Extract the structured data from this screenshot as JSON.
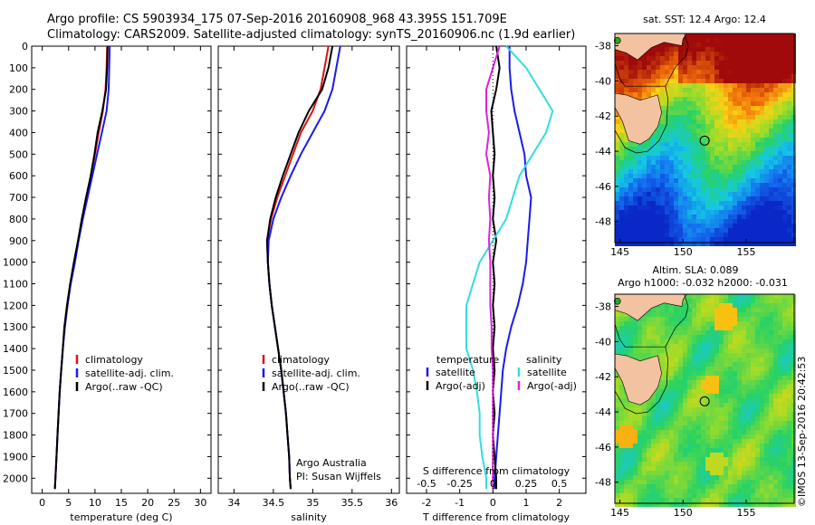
{
  "header": {
    "line1": "Argo profile: CS 5903934_175 07-Sep-2016 20160908_968 43.395S 151.709E",
    "line2": "Climatology: CARS2009. Satellite-adjusted climatology: synTS_20160906.nc (1.9d earlier)"
  },
  "colors": {
    "climatology": "#dd1111",
    "satellite": "#1a1aee",
    "argo": "#000000",
    "sal_satellite": "#33dddd",
    "sal_argo": "#dd22dd"
  },
  "chart_data": [
    {
      "type": "line",
      "id": "temperature",
      "xlabel": "temperature (deg C)",
      "ylabel": "",
      "xlim": [
        -2,
        32
      ],
      "ylim": [
        2070,
        0
      ],
      "xticks": [
        0,
        5,
        10,
        15,
        20,
        25,
        30
      ],
      "yticks": [
        0,
        100,
        200,
        300,
        400,
        500,
        600,
        700,
        800,
        900,
        1000,
        1100,
        1200,
        1300,
        1400,
        1500,
        1600,
        1700,
        1800,
        1900,
        2000
      ],
      "legend": [
        "climatology",
        "satellite-adj. clim.",
        "Argo(..raw -QC)"
      ],
      "series": [
        {
          "name": "climatology",
          "depth": [
            0,
            100,
            200,
            300,
            400,
            500,
            600,
            700,
            800,
            900,
            1000,
            1100,
            1200,
            1300,
            1400,
            1500,
            1600,
            1700,
            1800,
            1900,
            2000,
            2050
          ],
          "values": [
            12.3,
            12.2,
            12.0,
            11.5,
            10.7,
            10.0,
            9.2,
            8.4,
            7.6,
            6.8,
            6.1,
            5.3,
            4.7,
            4.2,
            3.9,
            3.6,
            3.3,
            3.1,
            2.9,
            2.7,
            2.5,
            2.4
          ]
        },
        {
          "name": "satellite-adj. clim.",
          "depth": [
            0,
            100,
            200,
            300,
            400,
            500,
            600,
            700,
            800,
            900,
            1000,
            1100,
            1200,
            1300,
            1400,
            1500,
            1600,
            1700,
            1800,
            1900,
            2000,
            2050
          ],
          "values": [
            12.8,
            12.7,
            12.6,
            12.2,
            11.3,
            10.4,
            9.5,
            8.6,
            7.7,
            6.9,
            6.2,
            5.4,
            4.8,
            4.3,
            3.9,
            3.6,
            3.3,
            3.1,
            2.9,
            2.7,
            2.5,
            2.4
          ]
        },
        {
          "name": "Argo(..raw -QC)",
          "depth": [
            0,
            100,
            200,
            300,
            400,
            500,
            600,
            700,
            800,
            900,
            1000,
            1100,
            1200,
            1300,
            1400,
            1500,
            1600,
            1700,
            1800,
            1900,
            2000,
            2050
          ],
          "values": [
            12.4,
            12.3,
            12.1,
            11.4,
            10.5,
            9.9,
            9.2,
            8.3,
            7.5,
            6.8,
            6.0,
            5.3,
            4.7,
            4.2,
            3.9,
            3.6,
            3.3,
            3.1,
            2.9,
            2.7,
            2.5,
            2.4
          ]
        }
      ]
    },
    {
      "type": "line",
      "id": "salinity",
      "xlabel": "salinity",
      "ylabel": "",
      "xlim": [
        33.8,
        36.1
      ],
      "ylim": [
        2070,
        0
      ],
      "xticks": [
        34,
        34.5,
        35,
        35.5,
        36
      ],
      "legend": [
        "climatology",
        "satellite-adj. clim.",
        "Argo(..raw -QC)"
      ],
      "annotation": [
        "Argo Australia",
        "PI: Susan Wijffels"
      ],
      "series": [
        {
          "name": "climatology",
          "depth": [
            0,
            100,
            200,
            300,
            400,
            500,
            600,
            700,
            800,
            900,
            1000,
            1100,
            1200,
            1300,
            1400,
            1500,
            1600,
            1700,
            1800,
            1900,
            2000,
            2050
          ],
          "values": [
            35.2,
            35.15,
            35.1,
            35.0,
            34.85,
            34.75,
            34.65,
            34.55,
            34.47,
            34.42,
            34.43,
            34.45,
            34.48,
            34.52,
            34.56,
            34.6,
            34.63,
            34.66,
            34.68,
            34.7,
            34.71,
            34.72
          ]
        },
        {
          "name": "satellite-adj. clim.",
          "depth": [
            0,
            100,
            200,
            300,
            400,
            500,
            600,
            700,
            800,
            900,
            1000,
            1100,
            1200,
            1300,
            1400,
            1500,
            1600,
            1700,
            1800,
            1900,
            2000,
            2050
          ],
          "values": [
            35.35,
            35.3,
            35.25,
            35.15,
            35.0,
            34.85,
            34.72,
            34.6,
            34.5,
            34.44,
            34.43,
            34.45,
            34.48,
            34.52,
            34.56,
            34.6,
            34.63,
            34.66,
            34.68,
            34.7,
            34.71,
            34.72
          ]
        },
        {
          "name": "Argo(..raw -QC)",
          "depth": [
            0,
            100,
            200,
            300,
            400,
            500,
            600,
            700,
            800,
            900,
            1000,
            1100,
            1200,
            1300,
            1400,
            1500,
            1600,
            1700,
            1800,
            1900,
            2000,
            2050
          ],
          "values": [
            35.25,
            35.2,
            35.12,
            34.95,
            34.82,
            34.72,
            34.62,
            34.53,
            34.46,
            34.42,
            34.43,
            34.45,
            34.48,
            34.52,
            34.56,
            34.6,
            34.63,
            34.66,
            34.68,
            34.7,
            34.71,
            34.72
          ]
        }
      ]
    },
    {
      "type": "line",
      "id": "differences",
      "xlabel": "T difference from climatology",
      "ylabel": "",
      "xlim": [
        -2.6,
        2.8
      ],
      "ylim": [
        2070,
        0
      ],
      "xticks": [
        -2,
        -1,
        0,
        1,
        2
      ],
      "secondary_axis_label": "S difference from climatology",
      "secondary_ticks": [
        "-0.5",
        "-0.25",
        "0",
        "0.25",
        "0.5"
      ],
      "legend_temperature": "temperature",
      "legend_salinity": "salinity",
      "legend": [
        "satellite",
        "Argo(-adj)",
        "satellite",
        "Argo(-adj)"
      ],
      "series": [
        {
          "name": "T satellite",
          "depth": [
            0,
            100,
            200,
            300,
            400,
            500,
            600,
            700,
            800,
            900,
            1000,
            1100,
            1200,
            1300,
            1400,
            1500,
            1600,
            1700,
            1800,
            1900,
            2000,
            2050
          ],
          "values": [
            0.5,
            0.5,
            0.55,
            0.65,
            0.8,
            0.95,
            1.0,
            1.15,
            1.1,
            1.05,
            1.0,
            0.9,
            0.75,
            0.55,
            0.4,
            0.3,
            0.25,
            0.2,
            0.15,
            0.1,
            0.05,
            0.05
          ]
        },
        {
          "name": "T Argo(-adj)",
          "depth": [
            0,
            100,
            200,
            300,
            400,
            500,
            600,
            700,
            800,
            900,
            1000,
            1100,
            1200,
            1300,
            1400,
            1500,
            1600,
            1700,
            1800,
            1900,
            2000,
            2050
          ],
          "values": [
            0.1,
            0.2,
            0.1,
            -0.05,
            0.0,
            0.05,
            0.0,
            0.05,
            0.0,
            0.1,
            0.0,
            0.05,
            0.0,
            0.05,
            0.0,
            0.05,
            0.0,
            0.05,
            0.0,
            0.05,
            0.1,
            0.1
          ]
        },
        {
          "name": "S satellite",
          "depth": [
            0,
            100,
            200,
            300,
            400,
            500,
            600,
            700,
            800,
            900,
            1000,
            1100,
            1200,
            1300,
            1400,
            1500,
            1600,
            1700,
            1800,
            1900,
            2000,
            2050
          ],
          "values": [
            0.1,
            0.25,
            0.35,
            0.45,
            0.4,
            0.3,
            0.2,
            0.15,
            0.1,
            0.0,
            -0.1,
            -0.15,
            -0.2,
            -0.2,
            -0.2,
            -0.15,
            -0.12,
            -0.1,
            -0.1,
            -0.08,
            -0.05,
            -0.05
          ]
        },
        {
          "name": "S Argo(-adj)",
          "depth": [
            0,
            100,
            200,
            300,
            400,
            500,
            600,
            700,
            800,
            900,
            1000,
            1100,
            1200,
            1300,
            1400,
            1500,
            1600,
            1700,
            1800,
            1900,
            2000,
            2050
          ],
          "values": [
            0.05,
            0.0,
            -0.05,
            -0.05,
            -0.03,
            -0.05,
            -0.02,
            -0.03,
            -0.02,
            -0.03,
            -0.02,
            -0.02,
            -0.02,
            -0.01,
            -0.01,
            0.0,
            0.0,
            0.0,
            0.0,
            0.0,
            0.0,
            0.0
          ]
        }
      ]
    }
  ],
  "maps": [
    {
      "id": "sst",
      "title": "sat. SST: 12.4 Argo: 12.4",
      "subtitle": "",
      "lon_ticks": [
        145,
        150,
        155
      ],
      "lat_ticks": [
        -38,
        -40,
        -42,
        -44,
        -46,
        -48
      ],
      "lon_range": [
        144.6,
        158.8
      ],
      "lat_range": [
        -37.3,
        -49.2
      ],
      "float_position": {
        "lon": 151.709,
        "lat": -43.395
      }
    },
    {
      "id": "sla",
      "title": "Altim. SLA: 0.089",
      "subtitle": "Argo h1000: -0.032 h2000: -0.031",
      "lon_ticks": [
        145,
        150,
        155
      ],
      "lat_ticks": [
        -38,
        -40,
        -42,
        -44,
        -46,
        -48
      ],
      "lon_range": [
        144.6,
        158.8
      ],
      "lat_range": [
        -37.3,
        -49.2
      ],
      "float_position": {
        "lon": 151.709,
        "lat": -43.395
      }
    }
  ],
  "credit": "©IMOS 13-Sep-2016 20:42:53"
}
